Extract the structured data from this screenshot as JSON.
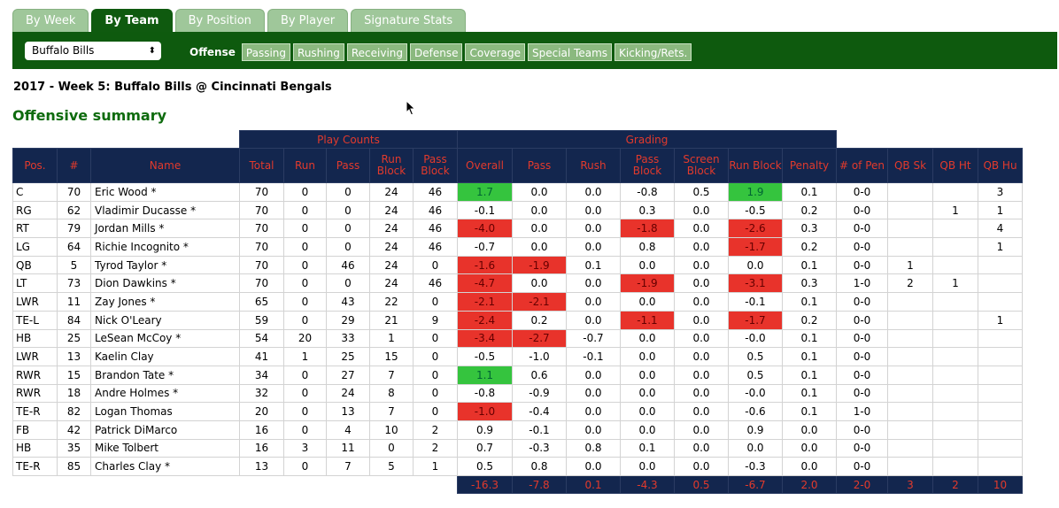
{
  "tabs": [
    "By Week",
    "By Team",
    "By Position",
    "By Player",
    "Signature Stats"
  ],
  "active_tab": "By Team",
  "team_select": {
    "value": "Buffalo Bills",
    "arrows": "⬍"
  },
  "subtab_label": "Offense",
  "subtabs": [
    "Passing",
    "Rushing",
    "Receiving",
    "Defense",
    "Coverage",
    "Special Teams",
    "Kicking/Rets."
  ],
  "game_title": "2017 - Week 5:  Buffalo Bills @ Cincinnati Bengals",
  "section_title": "Offensive summary",
  "groups": {
    "play_counts": "Play Counts",
    "grading": "Grading"
  },
  "columns": [
    "Pos.",
    "#",
    "Name",
    "Total",
    "Run",
    "Pass",
    "Run Block",
    "Pass Block",
    "Overall",
    "Pass",
    "Rush",
    "Pass Block",
    "Screen Block",
    "Run Block",
    "Penalty",
    "# of Pen",
    "QB Sk",
    "QB Ht",
    "QB Hu"
  ],
  "rows": [
    [
      "C",
      "70",
      "Eric Wood *",
      "70",
      "0",
      "0",
      "24",
      "46",
      "1.7",
      "0.0",
      "0.0",
      "-0.8",
      "0.5",
      "1.9",
      "0.1",
      "0-0",
      "",
      "",
      "3"
    ],
    [
      "RG",
      "62",
      "Vladimir Ducasse *",
      "70",
      "0",
      "0",
      "24",
      "46",
      "-0.1",
      "0.0",
      "0.0",
      "0.3",
      "0.0",
      "-0.5",
      "0.2",
      "0-0",
      "",
      "1",
      "1"
    ],
    [
      "RT",
      "79",
      "Jordan Mills *",
      "70",
      "0",
      "0",
      "24",
      "46",
      "-4.0",
      "0.0",
      "0.0",
      "-1.8",
      "0.0",
      "-2.6",
      "0.3",
      "0-0",
      "",
      "",
      "4"
    ],
    [
      "LG",
      "64",
      "Richie Incognito *",
      "70",
      "0",
      "0",
      "24",
      "46",
      "-0.7",
      "0.0",
      "0.0",
      "0.8",
      "0.0",
      "-1.7",
      "0.2",
      "0-0",
      "",
      "",
      "1"
    ],
    [
      "QB",
      "5",
      "Tyrod Taylor *",
      "70",
      "0",
      "46",
      "24",
      "0",
      "-1.6",
      "-1.9",
      "0.1",
      "0.0",
      "0.0",
      "0.0",
      "0.1",
      "0-0",
      "1",
      "",
      ""
    ],
    [
      "LT",
      "73",
      "Dion Dawkins *",
      "70",
      "0",
      "0",
      "24",
      "46",
      "-4.7",
      "0.0",
      "0.0",
      "-1.9",
      "0.0",
      "-3.1",
      "0.3",
      "1-0",
      "2",
      "1",
      ""
    ],
    [
      "LWR",
      "11",
      "Zay Jones *",
      "65",
      "0",
      "43",
      "22",
      "0",
      "-2.1",
      "-2.1",
      "0.0",
      "0.0",
      "0.0",
      "-0.1",
      "0.1",
      "0-0",
      "",
      "",
      ""
    ],
    [
      "TE-L",
      "84",
      "Nick O'Leary",
      "59",
      "0",
      "29",
      "21",
      "9",
      "-2.4",
      "0.2",
      "0.0",
      "-1.1",
      "0.0",
      "-1.7",
      "0.2",
      "0-0",
      "",
      "",
      "1"
    ],
    [
      "HB",
      "25",
      "LeSean McCoy *",
      "54",
      "20",
      "33",
      "1",
      "0",
      "-3.4",
      "-2.7",
      "-0.7",
      "0.0",
      "0.0",
      "-0.0",
      "0.1",
      "0-0",
      "",
      "",
      ""
    ],
    [
      "LWR",
      "13",
      "Kaelin Clay",
      "41",
      "1",
      "25",
      "15",
      "0",
      "-0.5",
      "-1.0",
      "-0.1",
      "0.0",
      "0.0",
      "0.5",
      "0.1",
      "0-0",
      "",
      "",
      ""
    ],
    [
      "RWR",
      "15",
      "Brandon Tate *",
      "34",
      "0",
      "27",
      "7",
      "0",
      "1.1",
      "0.6",
      "0.0",
      "0.0",
      "0.0",
      "0.5",
      "0.1",
      "0-0",
      "",
      "",
      ""
    ],
    [
      "RWR",
      "18",
      "Andre Holmes *",
      "32",
      "0",
      "24",
      "8",
      "0",
      "-0.8",
      "-0.9",
      "0.0",
      "0.0",
      "0.0",
      "-0.0",
      "0.1",
      "0-0",
      "",
      "",
      ""
    ],
    [
      "TE-R",
      "82",
      "Logan Thomas",
      "20",
      "0",
      "13",
      "7",
      "0",
      "-1.0",
      "-0.4",
      "0.0",
      "0.0",
      "0.0",
      "-0.6",
      "0.1",
      "1-0",
      "",
      "",
      ""
    ],
    [
      "FB",
      "42",
      "Patrick DiMarco",
      "16",
      "0",
      "4",
      "10",
      "2",
      "0.9",
      "-0.1",
      "0.0",
      "0.0",
      "0.0",
      "0.9",
      "0.0",
      "0-0",
      "",
      "",
      ""
    ],
    [
      "HB",
      "35",
      "Mike Tolbert",
      "16",
      "3",
      "11",
      "0",
      "2",
      "0.7",
      "-0.3",
      "0.8",
      "0.1",
      "0.0",
      "0.0",
      "0.0",
      "0-0",
      "",
      "",
      ""
    ],
    [
      "TE-R",
      "85",
      "Charles Clay *",
      "13",
      "0",
      "7",
      "5",
      "1",
      "0.5",
      "0.8",
      "0.0",
      "0.0",
      "0.0",
      "-0.3",
      "0.0",
      "0-0",
      "",
      "",
      ""
    ]
  ],
  "highlights": {
    "negative": [
      [
        0,
        13,
        false
      ],
      [
        2,
        8,
        true
      ],
      [
        2,
        11,
        true
      ],
      [
        2,
        13,
        true
      ],
      [
        3,
        13,
        true
      ],
      [
        4,
        8,
        true
      ],
      [
        4,
        9,
        true
      ],
      [
        5,
        8,
        true
      ],
      [
        5,
        11,
        true
      ],
      [
        5,
        13,
        true
      ],
      [
        6,
        8,
        true
      ],
      [
        6,
        9,
        true
      ],
      [
        7,
        8,
        true
      ],
      [
        7,
        11,
        true
      ],
      [
        7,
        13,
        true
      ],
      [
        8,
        8,
        true
      ],
      [
        8,
        9,
        true
      ],
      [
        12,
        8,
        true
      ]
    ],
    "positive": [
      [
        0,
        8
      ],
      [
        0,
        13
      ],
      [
        10,
        8
      ]
    ]
  },
  "totals": [
    "-16.3",
    "-7.8",
    "0.1",
    "-4.3",
    "0.5",
    "-6.7",
    "2.0",
    "2-0",
    "3",
    "2",
    "10"
  ],
  "colors": {
    "green_bar": "#0e5a0e",
    "header_navy": "#13264e",
    "header_text": "#e23a2c",
    "negative": "#e8332b",
    "positive": "#35c43e"
  }
}
